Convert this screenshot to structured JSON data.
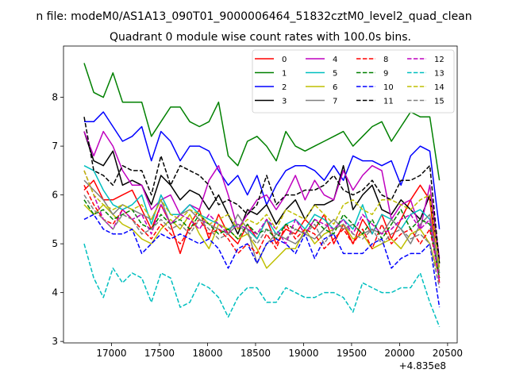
{
  "chart_data": {
    "type": "line",
    "suptitle": "n file: modeM0/AS1A13_090T01_9000006464_51832cztM0_level2_quad_clean",
    "title": "Quadrant 0 module wise count rates with 100.0s bins.",
    "xlabel": "",
    "ylabel": "",
    "x_offset_label": "+4.835e8",
    "xlim": [
      16500,
      20600
    ],
    "ylim": [
      2.97,
      9.05
    ],
    "xticks": [
      17000,
      17500,
      18000,
      18500,
      19000,
      19500,
      20000,
      20500
    ],
    "yticks": [
      3,
      4,
      5,
      6,
      7,
      8
    ],
    "grid": false,
    "legend_position": "top-right",
    "x": [
      16715,
      16815,
      16915,
      17015,
      17115,
      17215,
      17315,
      17415,
      17515,
      17615,
      17715,
      17815,
      17915,
      18015,
      18115,
      18215,
      18315,
      18415,
      18515,
      18615,
      18715,
      18815,
      18915,
      19015,
      19115,
      19215,
      19315,
      19415,
      19515,
      19615,
      19715,
      19815,
      19915,
      20015,
      20115,
      20215,
      20315,
      20415
    ],
    "series": [
      {
        "name": "0",
        "color": "#ff0000",
        "dash": "solid",
        "values": [
          6.1,
          6.3,
          5.9,
          5.9,
          6.0,
          6.1,
          5.7,
          5.3,
          5.8,
          5.4,
          4.8,
          5.4,
          5.7,
          5.1,
          5.6,
          5.2,
          5.0,
          5.4,
          5.1,
          5.5,
          5.0,
          5.3,
          5.2,
          5.5,
          5.3,
          5.6,
          5.0,
          5.4,
          5.0,
          5.5,
          5.2,
          5.6,
          5.1,
          5.5,
          5.9,
          6.2,
          5.9,
          4.2
        ]
      },
      {
        "name": "1",
        "color": "#008000",
        "dash": "solid",
        "values": [
          8.7,
          8.1,
          8.0,
          8.5,
          7.9,
          7.9,
          7.9,
          7.2,
          7.5,
          7.8,
          7.8,
          7.5,
          7.4,
          7.5,
          7.9,
          6.8,
          6.6,
          7.1,
          7.2,
          7.0,
          6.7,
          7.3,
          7.0,
          6.9,
          7.0,
          7.1,
          7.2,
          7.3,
          7.0,
          7.2,
          7.4,
          7.5,
          7.1,
          7.4,
          7.7,
          7.6,
          7.6,
          6.3
        ]
      },
      {
        "name": "2",
        "color": "#0000ff",
        "dash": "solid",
        "values": [
          7.5,
          7.5,
          7.7,
          7.4,
          7.1,
          7.2,
          7.4,
          6.7,
          7.3,
          7.1,
          6.7,
          7.0,
          7.0,
          6.9,
          6.5,
          6.2,
          6.4,
          6.0,
          6.4,
          5.8,
          6.2,
          6.5,
          6.6,
          6.6,
          6.5,
          6.3,
          6.6,
          6.3,
          6.8,
          6.7,
          6.7,
          6.6,
          6.7,
          6.2,
          6.8,
          7.0,
          6.9,
          5.3
        ]
      },
      {
        "name": "3",
        "color": "#000000",
        "dash": "solid",
        "values": [
          7.3,
          6.7,
          6.6,
          6.9,
          6.2,
          6.3,
          6.2,
          5.8,
          6.4,
          6.2,
          5.9,
          6.1,
          6.0,
          5.7,
          6.0,
          5.6,
          5.2,
          5.7,
          5.6,
          5.8,
          5.4,
          5.7,
          5.9,
          5.5,
          5.8,
          5.8,
          5.9,
          6.6,
          5.7,
          6.0,
          6.2,
          5.7,
          5.6,
          5.9,
          5.7,
          5.5,
          6.0,
          4.6
        ]
      },
      {
        "name": "4",
        "color": "#bf00bf",
        "dash": "solid",
        "values": [
          7.3,
          6.8,
          7.3,
          7.0,
          6.5,
          6.2,
          6.2,
          5.7,
          5.9,
          6.0,
          5.6,
          5.8,
          5.7,
          6.3,
          6.6,
          6.0,
          5.3,
          5.6,
          5.9,
          6.0,
          5.7,
          6.0,
          6.4,
          5.9,
          6.3,
          6.0,
          5.9,
          6.5,
          6.1,
          6.4,
          6.6,
          6.5,
          5.5,
          5.8,
          5.9,
          5.3,
          6.2,
          4.7
        ]
      },
      {
        "name": "5",
        "color": "#00bfbf",
        "dash": "solid",
        "values": [
          6.6,
          6.5,
          6.1,
          5.8,
          5.7,
          5.8,
          6.0,
          5.4,
          6.0,
          5.6,
          5.6,
          5.8,
          5.6,
          5.5,
          5.4,
          5.3,
          5.4,
          5.3,
          5.1,
          5.5,
          5.2,
          5.4,
          5.5,
          5.3,
          5.6,
          5.5,
          5.3,
          5.5,
          5.3,
          5.8,
          5.2,
          5.6,
          5.5,
          5.3,
          5.6,
          5.7,
          5.5,
          4.4
        ]
      },
      {
        "name": "6",
        "color": "#bfbf00",
        "dash": "solid",
        "values": [
          5.8,
          5.6,
          5.8,
          5.6,
          5.4,
          5.3,
          5.1,
          5.0,
          5.3,
          5.5,
          5.3,
          5.6,
          5.2,
          4.9,
          5.4,
          5.3,
          5.1,
          5.2,
          4.9,
          4.5,
          4.7,
          4.9,
          4.9,
          5.3,
          5.0,
          5.2,
          5.3,
          5.4,
          5.1,
          5.2,
          4.9,
          5.0,
          5.1,
          4.9,
          5.2,
          5.3,
          5.0,
          4.3
        ]
      },
      {
        "name": "7",
        "color": "#808080",
        "dash": "solid",
        "values": [
          6.3,
          6.1,
          5.9,
          5.6,
          5.8,
          5.7,
          5.6,
          5.5,
          5.9,
          5.4,
          5.6,
          5.7,
          5.5,
          5.4,
          5.3,
          5.2,
          5.6,
          5.3,
          4.6,
          5.0,
          5.2,
          5.1,
          5.0,
          5.2,
          5.1,
          5.3,
          5.5,
          5.3,
          5.4,
          5.2,
          5.3,
          5.2,
          5.5,
          5.3,
          5.0,
          5.4,
          5.6,
          4.4
        ]
      },
      {
        "name": "8",
        "color": "#ff0000",
        "dash": "dashed",
        "values": [
          6.2,
          5.8,
          5.5,
          5.4,
          5.7,
          5.5,
          5.3,
          5.1,
          5.4,
          5.2,
          5.0,
          5.3,
          5.5,
          5.2,
          5.3,
          5.1,
          4.8,
          5.0,
          4.8,
          5.2,
          4.9,
          5.4,
          5.1,
          5.3,
          5.2,
          4.9,
          5.1,
          5.3,
          5.0,
          5.3,
          4.9,
          5.4,
          5.0,
          5.2,
          5.3,
          5.0,
          5.3,
          4.3
        ]
      },
      {
        "name": "9",
        "color": "#008000",
        "dash": "dashed",
        "values": [
          5.9,
          5.6,
          5.7,
          5.5,
          5.6,
          5.7,
          5.4,
          5.3,
          5.6,
          5.4,
          5.5,
          5.3,
          5.6,
          5.4,
          5.2,
          5.3,
          5.1,
          5.4,
          5.2,
          5.3,
          5.1,
          5.4,
          5.3,
          5.2,
          5.5,
          5.3,
          5.2,
          5.6,
          5.4,
          5.2,
          5.5,
          5.1,
          5.4,
          5.7,
          5.3,
          5.5,
          5.4,
          4.3
        ]
      },
      {
        "name": "10",
        "color": "#0000ff",
        "dash": "dashed",
        "values": [
          5.5,
          5.6,
          5.3,
          5.2,
          5.2,
          5.3,
          4.8,
          5.0,
          5.2,
          5.1,
          5.2,
          5.1,
          5.0,
          5.1,
          4.9,
          4.5,
          4.9,
          5.0,
          4.6,
          5.0,
          5.1,
          5.0,
          4.8,
          5.2,
          4.7,
          5.1,
          5.2,
          4.8,
          4.8,
          4.8,
          5.0,
          5.1,
          4.5,
          4.7,
          4.8,
          4.8,
          5.0,
          3.7
        ]
      },
      {
        "name": "11",
        "color": "#000000",
        "dash": "dashed",
        "values": [
          7.6,
          6.5,
          6.4,
          6.2,
          6.6,
          6.5,
          6.5,
          6.0,
          6.8,
          6.2,
          6.6,
          6.5,
          6.4,
          6.2,
          5.8,
          5.9,
          5.8,
          5.6,
          5.8,
          6.4,
          5.8,
          6.0,
          6.0,
          6.1,
          6.1,
          6.2,
          6.4,
          6.1,
          6.0,
          6.1,
          6.3,
          6.0,
          5.9,
          6.3,
          6.3,
          6.4,
          6.6,
          4.6
        ]
      },
      {
        "name": "12",
        "color": "#bf00bf",
        "dash": "dashed",
        "values": [
          6.5,
          6.0,
          5.5,
          5.3,
          5.7,
          5.5,
          5.6,
          5.2,
          5.8,
          5.4,
          5.6,
          5.5,
          5.3,
          5.6,
          5.4,
          5.2,
          5.4,
          5.3,
          5.2,
          5.5,
          5.3,
          5.0,
          5.5,
          5.2,
          5.5,
          5.4,
          5.3,
          5.5,
          5.2,
          5.6,
          5.4,
          5.2,
          5.3,
          5.5,
          5.6,
          5.3,
          5.5,
          4.2
        ]
      },
      {
        "name": "13",
        "color": "#00bfbf",
        "dash": "dashed",
        "values": [
          5.0,
          4.3,
          3.9,
          4.5,
          4.2,
          4.4,
          4.3,
          3.8,
          4.4,
          4.3,
          3.7,
          3.8,
          4.2,
          4.1,
          3.9,
          3.5,
          3.9,
          4.1,
          4.1,
          3.8,
          3.8,
          4.1,
          4.0,
          3.9,
          3.9,
          4.0,
          4.0,
          3.9,
          3.6,
          4.2,
          4.1,
          4.0,
          4.0,
          4.1,
          4.1,
          4.4,
          3.8,
          3.3
        ]
      },
      {
        "name": "14",
        "color": "#bfbf00",
        "dash": "dashed",
        "values": [
          6.5,
          6.0,
          5.8,
          5.7,
          5.8,
          5.7,
          5.8,
          5.5,
          5.9,
          5.6,
          5.5,
          5.7,
          5.6,
          5.4,
          5.5,
          5.6,
          5.3,
          5.5,
          5.4,
          5.6,
          5.3,
          5.7,
          5.6,
          5.5,
          5.8,
          5.6,
          5.4,
          5.8,
          5.9,
          5.7,
          5.6,
          5.9,
          5.9,
          5.8,
          5.7,
          5.9,
          6.0,
          4.5
        ]
      },
      {
        "name": "15",
        "color": "#808080",
        "dash": "dashed",
        "values": [
          6.0,
          5.7,
          5.5,
          5.3,
          5.6,
          5.5,
          5.2,
          5.3,
          5.5,
          5.3,
          5.4,
          5.2,
          5.5,
          5.3,
          5.1,
          5.2,
          5.4,
          5.2,
          5.0,
          5.3,
          5.2,
          5.1,
          5.3,
          5.2,
          5.4,
          5.0,
          5.3,
          5.4,
          5.2,
          5.1,
          5.3,
          5.0,
          5.2,
          5.3,
          5.1,
          5.2,
          5.0,
          4.1
        ]
      }
    ]
  }
}
